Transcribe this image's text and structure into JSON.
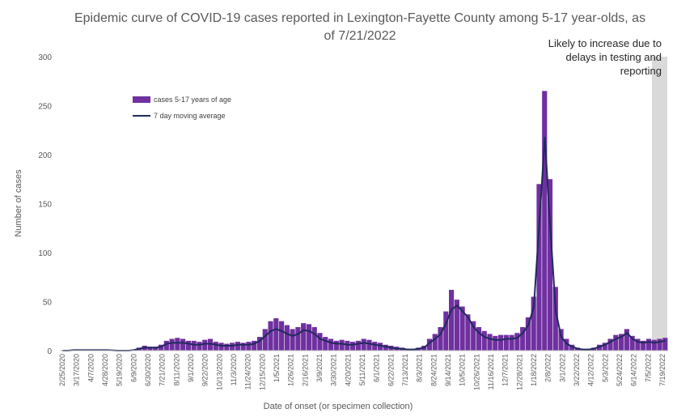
{
  "chart_data": {
    "type": "bar",
    "title_line1": "Epidemic curve of COVID-19 cases reported in Lexington-Fayette County among 5-17 year-olds, as",
    "title_line2": "of 7/21/2022",
    "xlabel": "Date of onset (or specimen collection)",
    "ylabel": "Number of cases",
    "ylim": [
      0,
      300
    ],
    "yticks": [
      "0",
      "50",
      "100",
      "150",
      "200",
      "250",
      "300"
    ],
    "grid": false,
    "legend_position": "upper-left",
    "legend": {
      "bars_label": "cases 5-17 years of age",
      "line_label": "7 day moving average"
    },
    "annotation_lines": [
      "Likely to increase due to",
      "delays in testing and",
      "reporting"
    ],
    "annotation_region": {
      "from": "6/28/2022",
      "to": "7/19/2022"
    },
    "bar_color": "#7030a0",
    "line_color": "#1f2a5c",
    "shade_color": "#d9d9d9",
    "x_tick_labels": [
      "2/25/2020",
      "3/17/2020",
      "4/7/2020",
      "4/28/2020",
      "5/19/2020",
      "6/9/2020",
      "6/30/2020",
      "7/21/2020",
      "8/11/2020",
      "9/1/2020",
      "9/22/2020",
      "10/13/2020",
      "11/3/2020",
      "11/24/2020",
      "12/15/2020",
      "1/5/2021",
      "1/26/2021",
      "2/16/2021",
      "3/9/2021",
      "3/30/2021",
      "4/20/2021",
      "5/11/2021",
      "6/1/2021",
      "6/22/2021",
      "7/13/2021",
      "8/3/2021",
      "8/24/2021",
      "9/14/2021",
      "10/5/2021",
      "10/26/2021",
      "11/16/2021",
      "12/7/2021",
      "12/28/2021",
      "1/18/2022",
      "2/8/2022",
      "3/1/2022",
      "3/22/2022",
      "4/12/2022",
      "5/3/2022",
      "5/24/2022",
      "6/14/2022",
      "7/5/2022",
      "7/19/2022"
    ],
    "series": [
      {
        "name": "cases 5-17 years of age",
        "kind": "bar",
        "period": "weekly peak of daily cases",
        "values": [
          0,
          0,
          1,
          0,
          1,
          0,
          1,
          0,
          1,
          0,
          0,
          0,
          0,
          1,
          3,
          5,
          4,
          4,
          6,
          10,
          12,
          13,
          12,
          10,
          10,
          9,
          11,
          12,
          9,
          8,
          7,
          8,
          9,
          8,
          9,
          10,
          14,
          22,
          30,
          33,
          30,
          26,
          22,
          24,
          28,
          27,
          24,
          18,
          14,
          12,
          10,
          11,
          10,
          9,
          10,
          12,
          11,
          9,
          8,
          6,
          5,
          4,
          3,
          2,
          2,
          3,
          5,
          12,
          17,
          24,
          40,
          62,
          52,
          45,
          37,
          30,
          24,
          20,
          17,
          15,
          16,
          16,
          16,
          18,
          24,
          34,
          55,
          170,
          265,
          175,
          65,
          22,
          12,
          6,
          3,
          2,
          2,
          3,
          6,
          8,
          12,
          16,
          17,
          22,
          15,
          12,
          10,
          12,
          11,
          12,
          13
        ]
      },
      {
        "name": "7 day moving average",
        "kind": "line",
        "values": [
          0,
          0,
          0.5,
          0.5,
          0.5,
          0.5,
          0.5,
          0.5,
          0.5,
          0.3,
          0,
          0,
          0,
          0.5,
          2,
          3,
          3,
          3,
          4,
          7,
          8,
          8,
          8,
          7,
          6,
          6,
          7,
          7,
          6,
          5,
          5,
          5,
          6,
          6,
          6,
          7,
          10,
          15,
          20,
          22,
          20,
          17,
          15,
          17,
          21,
          20,
          17,
          12,
          10,
          8,
          7,
          7,
          6,
          6,
          7,
          8,
          7,
          6,
          5,
          4,
          3,
          2,
          2,
          1,
          1,
          2,
          3,
          8,
          12,
          17,
          28,
          42,
          46,
          40,
          34,
          24,
          18,
          14,
          12,
          11,
          11,
          12,
          12,
          13,
          18,
          26,
          45,
          130,
          218,
          125,
          40,
          14,
          7,
          4,
          2,
          1,
          1,
          2,
          4,
          6,
          9,
          12,
          14,
          18,
          12,
          9,
          8,
          9,
          8,
          9,
          10
        ]
      }
    ]
  }
}
